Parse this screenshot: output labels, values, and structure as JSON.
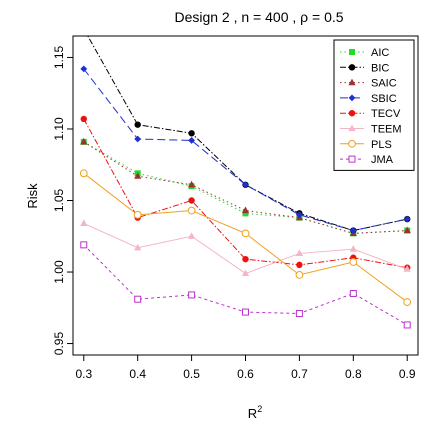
{
  "chart_data": {
    "type": "line",
    "title": "Design 2 , n = 400 ,  ρ = 0.5",
    "xlabel": "R",
    "xlabel_sup": "2",
    "ylabel": "Risk",
    "x": [
      0.3,
      0.4,
      0.5,
      0.6,
      0.7,
      0.8,
      0.9
    ],
    "x_tick_labels": [
      "0.3",
      "0.4",
      "0.5",
      "0.6",
      "0.7",
      "0.8",
      "0.9"
    ],
    "y_ticks": [
      0.95,
      1.0,
      1.05,
      1.1,
      1.15
    ],
    "y_tick_labels": [
      "0.95",
      "1.00",
      "1.05",
      "1.10",
      "1.15"
    ],
    "xlim": [
      0.28,
      0.92
    ],
    "ylim": [
      0.942,
      1.165
    ],
    "grid": false,
    "legend_position": "top-right",
    "series": [
      {
        "name": "AIC",
        "color": "#22dd22",
        "marker": "square",
        "dash": "1.5,3",
        "values": [
          1.091,
          1.069,
          1.06,
          1.041,
          1.038,
          1.027,
          1.029
        ]
      },
      {
        "name": "BIC",
        "color": "#000000",
        "marker": "circle",
        "dash": "6,2,1.5,2",
        "values": [
          1.17,
          1.103,
          1.097,
          1.061,
          1.041,
          1.029,
          1.037
        ]
      },
      {
        "name": "SAIC",
        "color": "#993333",
        "marker": "triangle",
        "dash": "1.5,3",
        "values": [
          1.091,
          1.067,
          1.061,
          1.043,
          1.038,
          1.027,
          1.029
        ]
      },
      {
        "name": "SBIC",
        "color": "#1f2fd0",
        "marker": "diamond",
        "dash": "8,4",
        "values": [
          1.142,
          1.093,
          1.092,
          1.061,
          1.04,
          1.029,
          1.037
        ]
      },
      {
        "name": "TECV",
        "color": "#ee1111",
        "marker": "circle",
        "dash": "6,2,1.5,2",
        "values": [
          1.107,
          1.038,
          1.05,
          1.009,
          1.005,
          1.01,
          1.003
        ]
      },
      {
        "name": "TEEM",
        "color": "#f4b6c6",
        "marker": "triangle",
        "dash": "",
        "values": [
          1.034,
          1.017,
          1.025,
          0.999,
          1.013,
          1.016,
          1.002
        ]
      },
      {
        "name": "PLS",
        "color": "#f0a020",
        "marker": "circle-open",
        "dash": "",
        "values": [
          1.069,
          1.04,
          1.043,
          1.027,
          0.998,
          1.007,
          0.979
        ]
      },
      {
        "name": "JMA",
        "color": "#bb33cc",
        "marker": "square-open",
        "dash": "3,3",
        "values": [
          1.019,
          0.981,
          0.984,
          0.972,
          0.971,
          0.985,
          0.963
        ]
      }
    ]
  }
}
